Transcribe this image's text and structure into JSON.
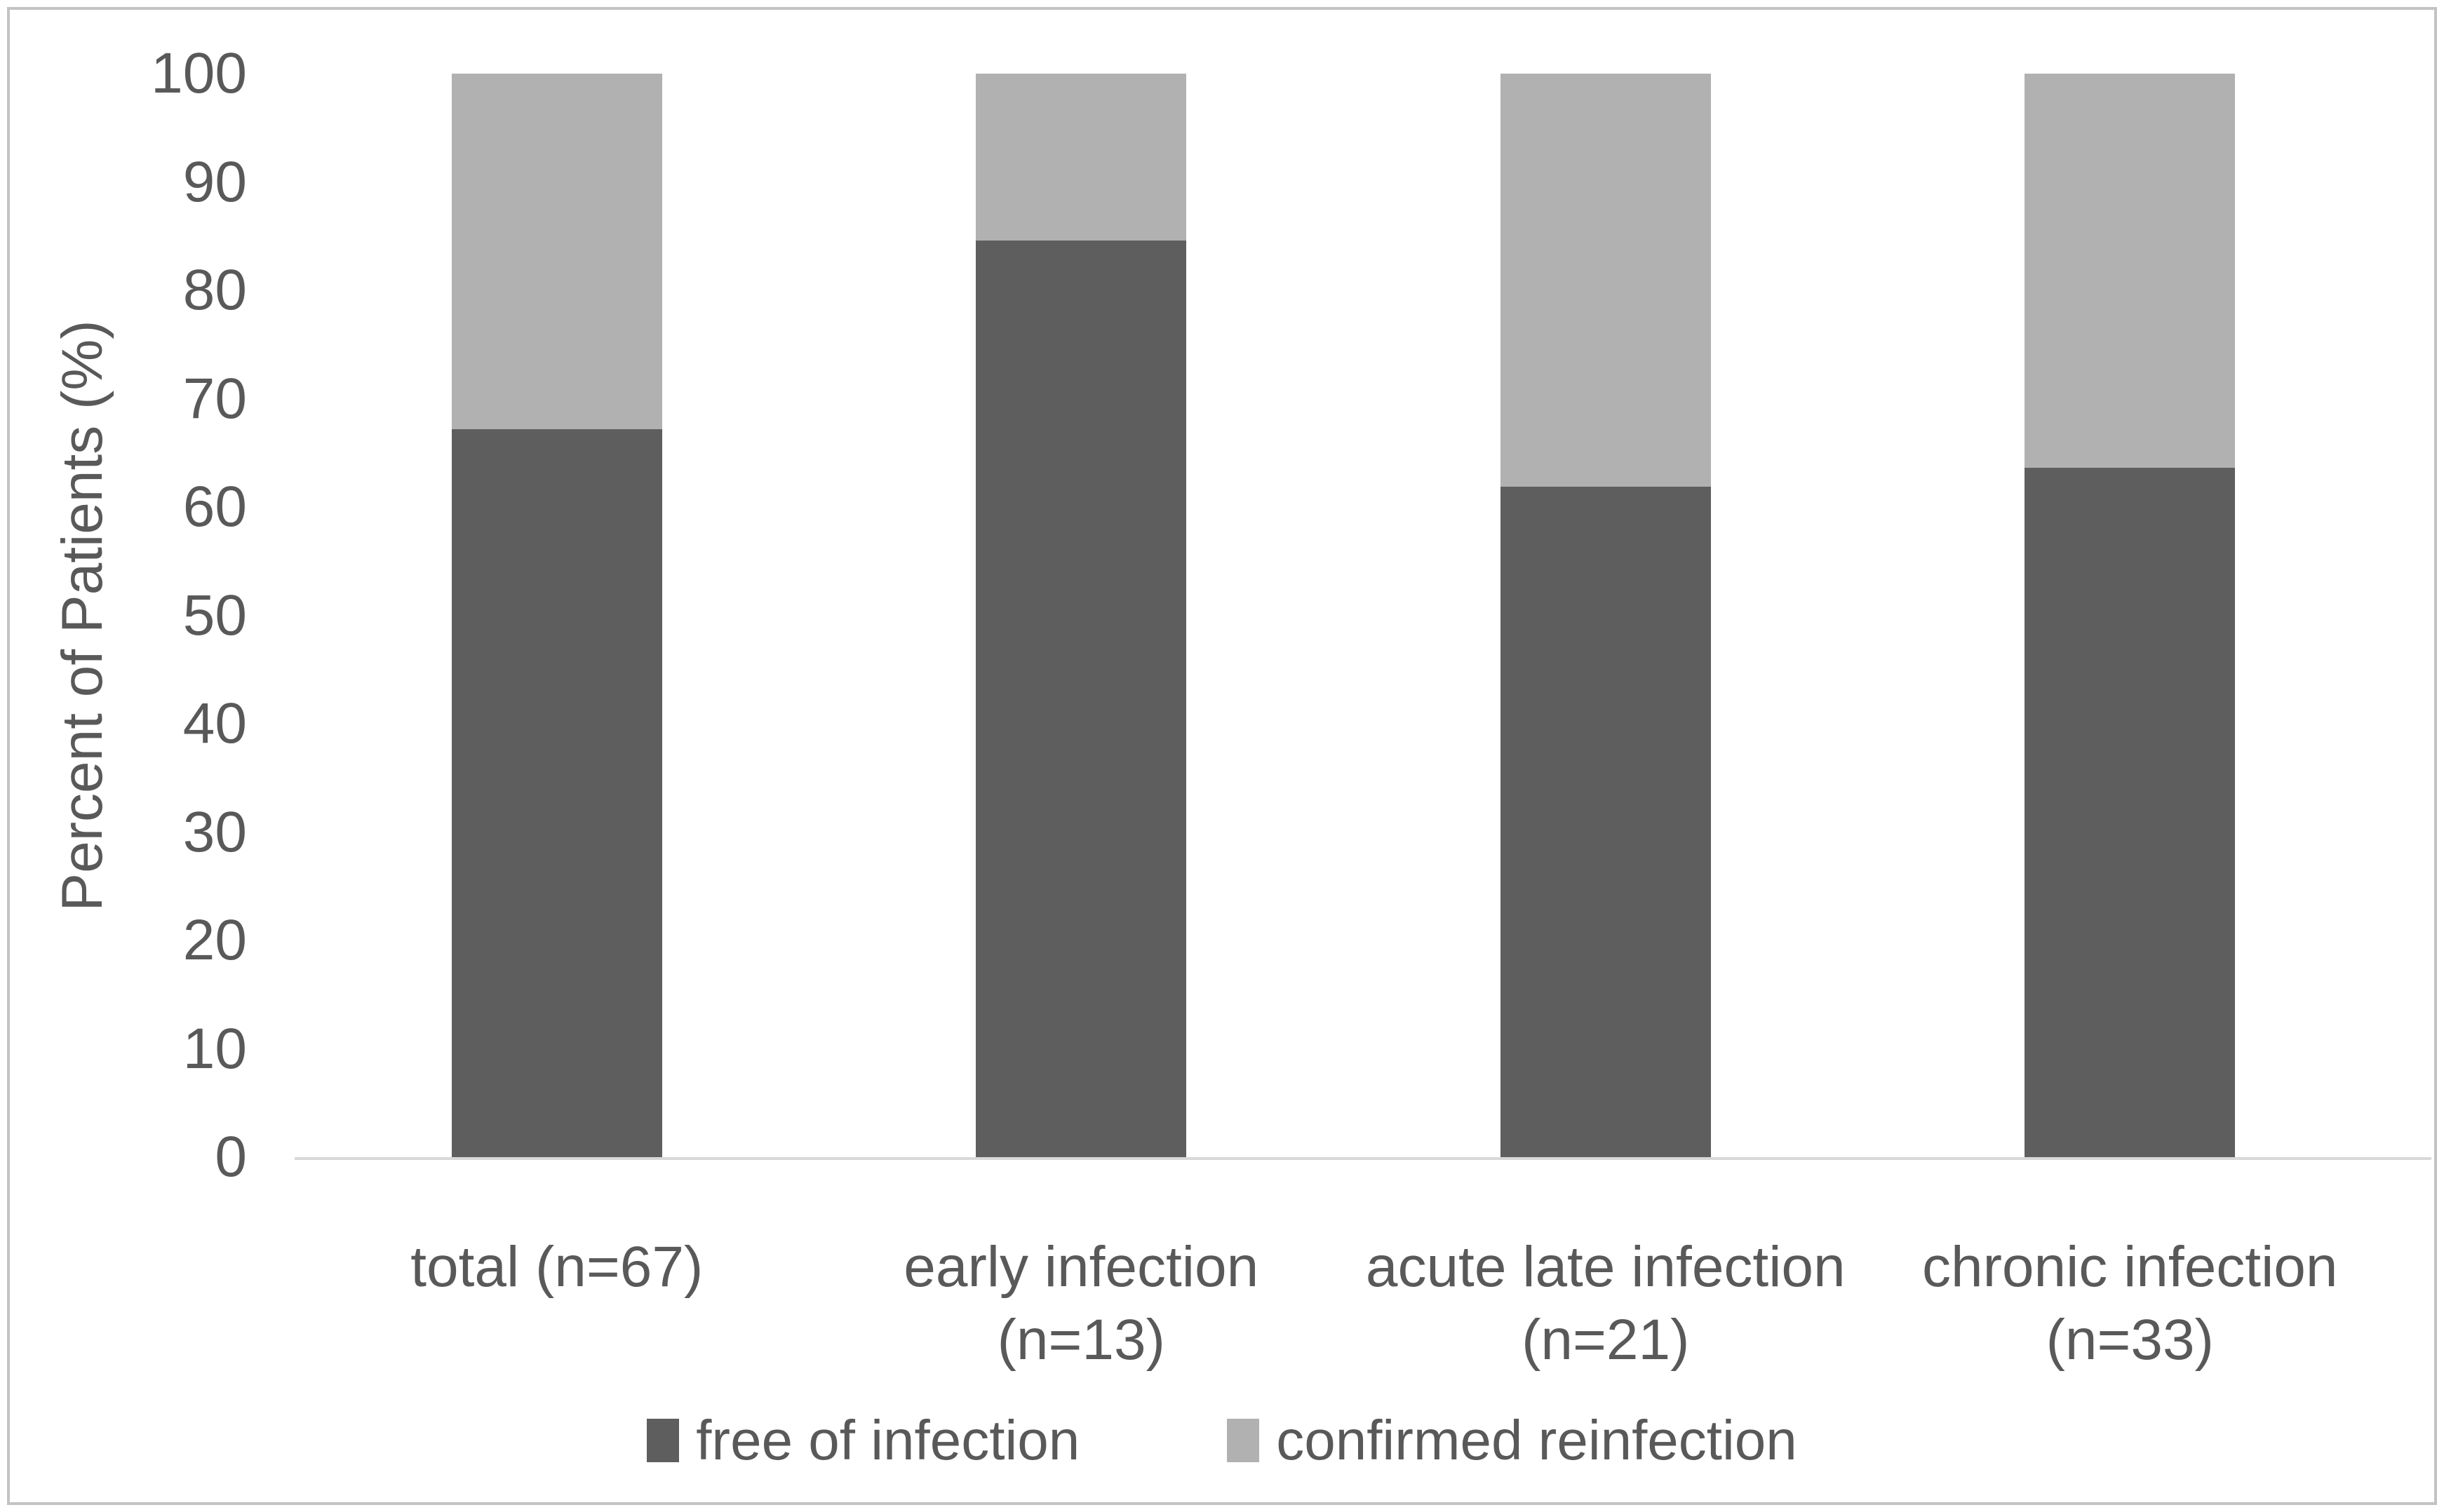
{
  "figure": {
    "ylabel": "Percent of Patients (%)",
    "legend_items": [
      {
        "label": "free of infection",
        "color": "#5e5e5e"
      },
      {
        "label": "confirmed reinfection",
        "color": "#b1b1b1"
      }
    ]
  },
  "chart_data": {
    "type": "bar",
    "stacked": true,
    "title": "",
    "xlabel": "",
    "ylabel": "Percent of Patients (%)",
    "ylim": [
      0,
      100
    ],
    "yticks": [
      0,
      10,
      20,
      30,
      40,
      50,
      60,
      70,
      80,
      90,
      100
    ],
    "grid": false,
    "legend_position": "bottom",
    "categories": [
      "total (n=67)",
      "early infection (n=13)",
      "acute late infection (n=21)",
      "chronic infection (n=33)"
    ],
    "category_label_lines": [
      [
        "total (n=67)"
      ],
      [
        "early infection",
        "(n=13)"
      ],
      [
        "acute late infection",
        "(n=21)"
      ],
      [
        "chronic infection",
        "(n=33)"
      ]
    ],
    "series": [
      {
        "name": "free of infection",
        "color": "#5e5e5e",
        "values": [
          67.2,
          84.6,
          61.9,
          63.6
        ]
      },
      {
        "name": "confirmed reinfection",
        "color": "#b1b1b1",
        "values": [
          32.8,
          15.4,
          38.1,
          36.4
        ]
      }
    ]
  },
  "colors": {
    "axis_line": "#d8d8d8",
    "frame_border": "#c3c3c3",
    "text": "#595959",
    "background": "#ffffff"
  }
}
